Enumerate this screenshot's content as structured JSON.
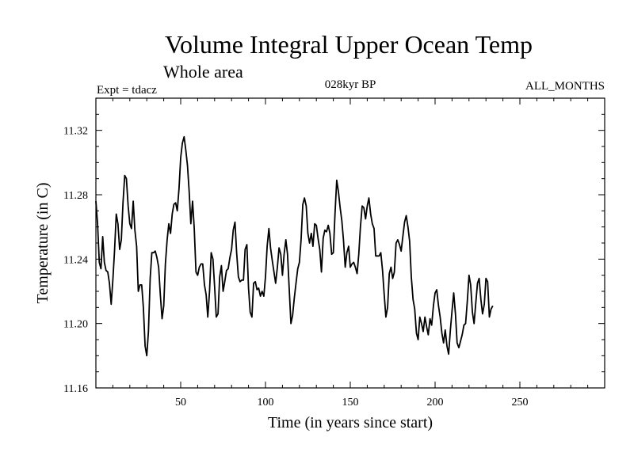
{
  "chart_data": {
    "type": "line",
    "title": "Volume Integral Upper Ocean Temp",
    "subtitle": "Whole area",
    "experiment": "Expt = tdacz",
    "period": "028kyr BP",
    "months": "ALL_MONTHS",
    "xlabel": "Time (in years since start)",
    "ylabel": "Temperature (in C)",
    "xlim": [
      0,
      300
    ],
    "ylim": [
      11.16,
      11.34
    ],
    "x_ticks": [
      {
        "value": 50,
        "label": "50"
      },
      {
        "value": 100,
        "label": "100"
      },
      {
        "value": 150,
        "label": "150"
      },
      {
        "value": 200,
        "label": "200"
      },
      {
        "value": 250,
        "label": "250"
      }
    ],
    "y_ticks": [
      {
        "value": 11.16,
        "label": "11.16"
      },
      {
        "value": 11.2,
        "label": "11.20"
      },
      {
        "value": 11.24,
        "label": "11.24"
      },
      {
        "value": 11.28,
        "label": "11.28"
      },
      {
        "value": 11.32,
        "label": "11.32"
      }
    ],
    "grid": false,
    "series": [
      {
        "name": "Temperature",
        "color": "#000000",
        "points": [
          [
            0,
            11.276
          ],
          [
            1,
            11.262
          ],
          [
            2,
            11.238
          ],
          [
            3,
            11.234
          ],
          [
            4,
            11.254
          ],
          [
            5,
            11.238
          ],
          [
            6,
            11.233
          ],
          [
            7,
            11.232
          ],
          [
            8,
            11.225
          ],
          [
            9,
            11.212
          ],
          [
            10,
            11.227
          ],
          [
            11,
            11.245
          ],
          [
            12,
            11.268
          ],
          [
            13,
            11.262
          ],
          [
            14,
            11.246
          ],
          [
            15,
            11.252
          ],
          [
            16,
            11.275
          ],
          [
            17,
            11.292
          ],
          [
            18,
            11.29
          ],
          [
            19,
            11.273
          ],
          [
            20,
            11.262
          ],
          [
            21,
            11.259
          ],
          [
            22,
            11.276
          ],
          [
            23,
            11.258
          ],
          [
            24,
            11.248
          ],
          [
            25,
            11.22
          ],
          [
            26,
            11.224
          ],
          [
            27,
            11.224
          ],
          [
            28,
            11.21
          ],
          [
            29,
            11.186
          ],
          [
            30,
            11.18
          ],
          [
            31,
            11.195
          ],
          [
            32,
            11.228
          ],
          [
            33,
            11.244
          ],
          [
            34,
            11.244
          ],
          [
            35,
            11.245
          ],
          [
            36,
            11.241
          ],
          [
            37,
            11.235
          ],
          [
            38,
            11.218
          ],
          [
            39,
            11.203
          ],
          [
            40,
            11.211
          ],
          [
            41,
            11.237
          ],
          [
            42,
            11.252
          ],
          [
            43,
            11.262
          ],
          [
            44,
            11.256
          ],
          [
            45,
            11.268
          ],
          [
            46,
            11.274
          ],
          [
            47,
            11.275
          ],
          [
            48,
            11.27
          ],
          [
            49,
            11.284
          ],
          [
            50,
            11.303
          ],
          [
            51,
            11.312
          ],
          [
            52,
            11.316
          ],
          [
            53,
            11.308
          ],
          [
            54,
            11.298
          ],
          [
            55,
            11.282
          ],
          [
            56,
            11.262
          ],
          [
            57,
            11.276
          ],
          [
            58,
            11.259
          ],
          [
            59,
            11.232
          ],
          [
            60,
            11.23
          ],
          [
            61,
            11.235
          ],
          [
            62,
            11.237
          ],
          [
            63,
            11.237
          ],
          [
            64,
            11.224
          ],
          [
            65,
            11.218
          ],
          [
            66,
            11.204
          ],
          [
            67,
            11.22
          ],
          [
            68,
            11.244
          ],
          [
            69,
            11.24
          ],
          [
            70,
            11.223
          ],
          [
            71,
            11.204
          ],
          [
            72,
            11.206
          ],
          [
            73,
            11.229
          ],
          [
            74,
            11.236
          ],
          [
            75,
            11.22
          ],
          [
            76,
            11.226
          ],
          [
            77,
            11.233
          ],
          [
            78,
            11.234
          ],
          [
            79,
            11.241
          ],
          [
            80,
            11.246
          ],
          [
            81,
            11.258
          ],
          [
            82,
            11.263
          ],
          [
            83,
            11.244
          ],
          [
            84,
            11.229
          ],
          [
            85,
            11.226
          ],
          [
            86,
            11.227
          ],
          [
            87,
            11.227
          ],
          [
            88,
            11.246
          ],
          [
            89,
            11.249
          ],
          [
            90,
            11.222
          ],
          [
            91,
            11.207
          ],
          [
            92,
            11.204
          ],
          [
            93,
            11.225
          ],
          [
            94,
            11.226
          ],
          [
            95,
            11.221
          ],
          [
            96,
            11.222
          ],
          [
            97,
            11.217
          ],
          [
            98,
            11.22
          ],
          [
            99,
            11.217
          ],
          [
            100,
            11.229
          ],
          [
            101,
            11.248
          ],
          [
            102,
            11.259
          ],
          [
            103,
            11.247
          ],
          [
            104,
            11.239
          ],
          [
            105,
            11.232
          ],
          [
            106,
            11.225
          ],
          [
            107,
            11.235
          ],
          [
            108,
            11.247
          ],
          [
            109,
            11.243
          ],
          [
            110,
            11.23
          ],
          [
            111,
            11.243
          ],
          [
            112,
            11.252
          ],
          [
            113,
            11.243
          ],
          [
            114,
            11.221
          ],
          [
            115,
            11.2
          ],
          [
            116,
            11.205
          ],
          [
            117,
            11.216
          ],
          [
            118,
            11.225
          ],
          [
            119,
            11.234
          ],
          [
            120,
            11.238
          ],
          [
            121,
            11.252
          ],
          [
            122,
            11.274
          ],
          [
            123,
            11.278
          ],
          [
            124,
            11.273
          ],
          [
            125,
            11.256
          ],
          [
            126,
            11.25
          ],
          [
            127,
            11.256
          ],
          [
            128,
            11.248
          ],
          [
            129,
            11.262
          ],
          [
            130,
            11.261
          ],
          [
            131,
            11.253
          ],
          [
            132,
            11.246
          ],
          [
            133,
            11.232
          ],
          [
            134,
            11.253
          ],
          [
            135,
            11.258
          ],
          [
            136,
            11.257
          ],
          [
            137,
            11.261
          ],
          [
            138,
            11.256
          ],
          [
            139,
            11.243
          ],
          [
            140,
            11.244
          ],
          [
            141,
            11.268
          ],
          [
            142,
            11.289
          ],
          [
            143,
            11.282
          ],
          [
            144,
            11.272
          ],
          [
            145,
            11.264
          ],
          [
            146,
            11.252
          ],
          [
            147,
            11.235
          ],
          [
            148,
            11.244
          ],
          [
            149,
            11.248
          ],
          [
            150,
            11.235
          ],
          [
            151,
            11.237
          ],
          [
            152,
            11.238
          ],
          [
            153,
            11.235
          ],
          [
            154,
            11.231
          ],
          [
            155,
            11.243
          ],
          [
            156,
            11.26
          ],
          [
            157,
            11.273
          ],
          [
            158,
            11.272
          ],
          [
            159,
            11.265
          ],
          [
            160,
            11.273
          ],
          [
            161,
            11.278
          ],
          [
            162,
            11.268
          ],
          [
            163,
            11.262
          ],
          [
            164,
            11.259
          ],
          [
            165,
            11.242
          ],
          [
            166,
            11.242
          ],
          [
            167,
            11.242
          ],
          [
            168,
            11.244
          ],
          [
            169,
            11.233
          ],
          [
            170,
            11.218
          ],
          [
            171,
            11.204
          ],
          [
            172,
            11.21
          ],
          [
            173,
            11.231
          ],
          [
            174,
            11.235
          ],
          [
            175,
            11.228
          ],
          [
            176,
            11.232
          ],
          [
            177,
            11.25
          ],
          [
            178,
            11.252
          ],
          [
            179,
            11.249
          ],
          [
            180,
            11.245
          ],
          [
            181,
            11.254
          ],
          [
            182,
            11.263
          ],
          [
            183,
            11.267
          ],
          [
            184,
            11.26
          ],
          [
            185,
            11.251
          ],
          [
            186,
            11.229
          ],
          [
            187,
            11.215
          ],
          [
            188,
            11.209
          ],
          [
            189,
            11.194
          ],
          [
            190,
            11.19
          ],
          [
            191,
            11.204
          ],
          [
            192,
            11.2
          ],
          [
            193,
            11.195
          ],
          [
            194,
            11.204
          ],
          [
            195,
            11.198
          ],
          [
            196,
            11.193
          ],
          [
            197,
            11.203
          ],
          [
            198,
            11.199
          ],
          [
            199,
            11.211
          ],
          [
            200,
            11.219
          ],
          [
            201,
            11.221
          ],
          [
            202,
            11.211
          ],
          [
            203,
            11.204
          ],
          [
            204,
            11.194
          ],
          [
            205,
            11.188
          ],
          [
            206,
            11.196
          ],
          [
            207,
            11.186
          ],
          [
            208,
            11.181
          ],
          [
            209,
            11.196
          ],
          [
            210,
            11.208
          ],
          [
            211,
            11.219
          ],
          [
            212,
            11.206
          ],
          [
            213,
            11.188
          ],
          [
            214,
            11.185
          ],
          [
            215,
            11.189
          ],
          [
            216,
            11.193
          ],
          [
            217,
            11.199
          ],
          [
            218,
            11.2
          ],
          [
            219,
            11.214
          ],
          [
            220,
            11.23
          ],
          [
            221,
            11.224
          ],
          [
            222,
            11.207
          ],
          [
            223,
            11.2
          ],
          [
            224,
            11.213
          ],
          [
            225,
            11.225
          ],
          [
            226,
            11.228
          ],
          [
            227,
            11.215
          ],
          [
            228,
            11.206
          ],
          [
            229,
            11.212
          ],
          [
            230,
            11.228
          ],
          [
            231,
            11.226
          ],
          [
            232,
            11.204
          ],
          [
            233,
            11.209
          ],
          [
            234,
            11.211
          ]
        ]
      }
    ]
  }
}
